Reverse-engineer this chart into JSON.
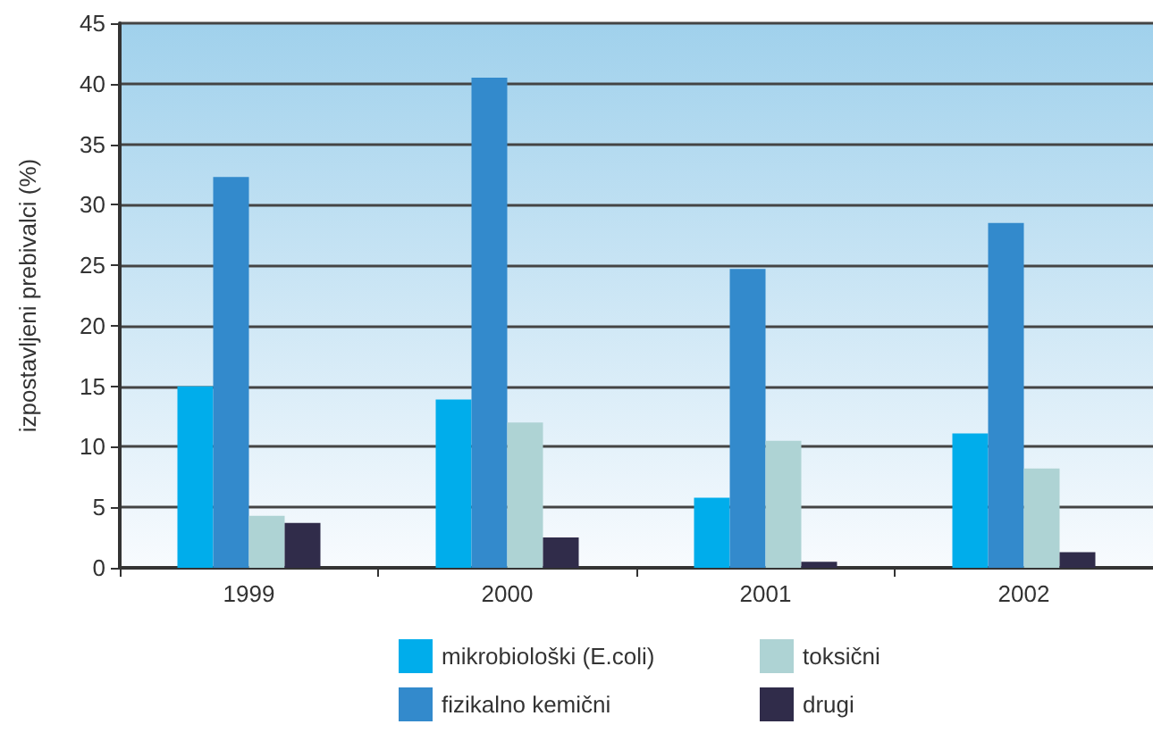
{
  "chart_data": {
    "type": "bar",
    "ylabel": "izpostavljeni prebivalci (%)",
    "categories": [
      "1999",
      "2000",
      "2001",
      "2002"
    ],
    "series": [
      {
        "name": "mikrobiološki (E.coli)",
        "color": "#00adeb",
        "values": [
          15,
          13.9,
          5.8,
          11.1
        ]
      },
      {
        "name": "fizikalno kemični",
        "color": "#338acc",
        "values": [
          32.3,
          40.5,
          24.7,
          28.5
        ]
      },
      {
        "name": "toksični",
        "color": "#aed3d4",
        "values": [
          4.3,
          12,
          10.5,
          8.2
        ]
      },
      {
        "name": "drugi",
        "color": "#302c4a",
        "values": [
          3.7,
          2.5,
          0.5,
          1.3
        ]
      }
    ],
    "ylim": [
      0,
      45
    ],
    "yticks": [
      0,
      5,
      10,
      15,
      20,
      25,
      30,
      35,
      40,
      45
    ],
    "grid": "y",
    "legend": "bottom"
  }
}
